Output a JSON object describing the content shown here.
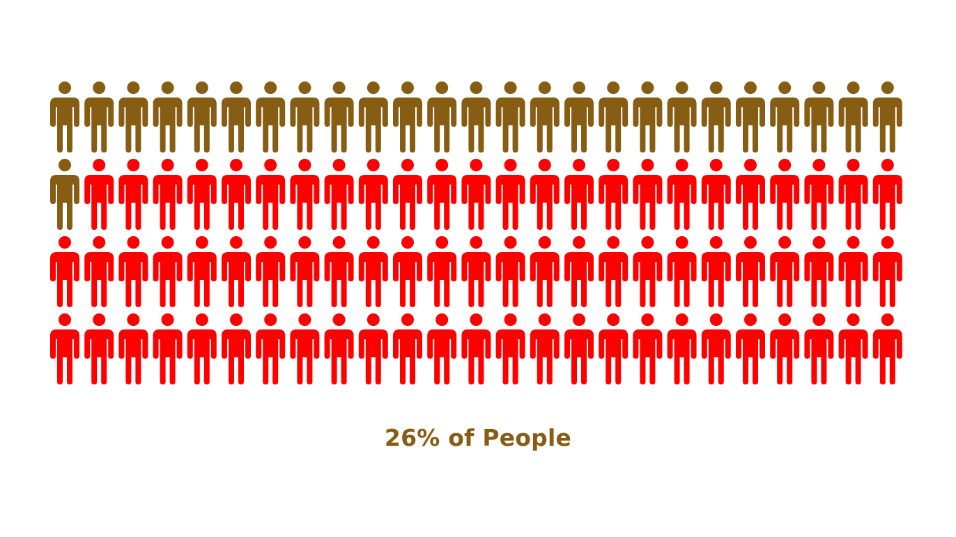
{
  "chart_data": {
    "type": "pictogram",
    "title": "",
    "caption": "26% of People",
    "total_icons": 100,
    "highlighted_icons": 26,
    "rows": 4,
    "columns": 25,
    "colors": {
      "highlighted": "#875C13",
      "rest": "#FF0000",
      "caption": "#875C13"
    },
    "icon": "person-icon"
  }
}
